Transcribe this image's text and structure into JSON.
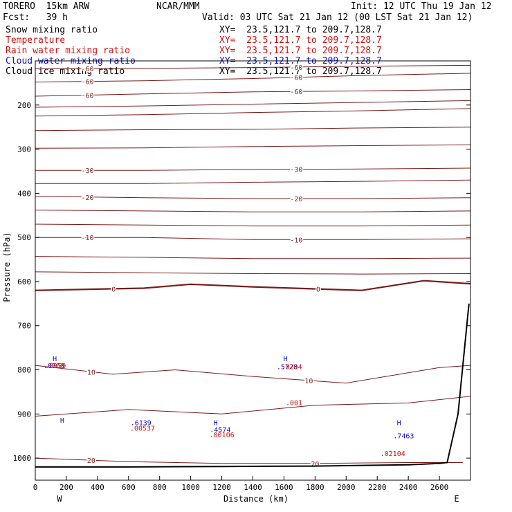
{
  "header": {
    "model": "TORERO  15km ARW",
    "center": "NCAR/MMM",
    "init": "Init: 12 UTC Thu 19 Jan 12",
    "fcst": "Fcst:   39 h",
    "valid": "Valid: 03 UTC Sat 21 Jan 12 (00 LST Sat 21 Jan 12)"
  },
  "fields": [
    {
      "name": "Snow mixing ratio",
      "xy": "XY=  23.5,121.7 to 209.7,128.7",
      "color": "#000000"
    },
    {
      "name": "Temperature",
      "xy": "XY=  23.5,121.7 to 209.7,128.7",
      "color": "#cc1111"
    },
    {
      "name": "Rain water mixing ratio",
      "xy": "XY=  23.5,121.7 to 209.7,128.7",
      "color": "#cc1111"
    },
    {
      "name": "Cloud water mixing ratio",
      "xy": "XY=  23.5,121.7 to 209.7,128.7",
      "color": "#1111cc"
    },
    {
      "name": "Cloud ice mixing ratio",
      "xy": "XY=  23.5,121.7 to 209.7,128.7",
      "color": "#000000"
    }
  ],
  "chart_data": {
    "type": "line",
    "xlabel": "Distance (km)",
    "ylabel": "Pressure (hPa)",
    "xlim": [
      0,
      2800
    ],
    "ylim": [
      1050,
      100
    ],
    "x_ticks": [
      0,
      200,
      400,
      600,
      800,
      1000,
      1200,
      1400,
      1600,
      1800,
      2000,
      2200,
      2400,
      2600
    ],
    "y_ticks": [
      200,
      300,
      400,
      500,
      600,
      700,
      800,
      900,
      1000
    ],
    "left_label": "W",
    "right_label": "E",
    "colors": {
      "temperature": "#7a1a1a",
      "rain": "#cc1111",
      "cloud_water": "#1111cc",
      "terrain": "#000000"
    },
    "temperature_contours": [
      {
        "label": "-60",
        "x": [
          0,
          700,
          1400,
          2100,
          2800
        ],
        "p": [
          118,
          117,
          115,
          112,
          110
        ]
      },
      {
        "label": "-60",
        "x": [
          0,
          700,
          1400,
          2100,
          2800
        ],
        "p": [
          148,
          145,
          140,
          133,
          128
        ]
      },
      {
        "label": "-60",
        "x": [
          0,
          700,
          1400,
          2100,
          2800
        ],
        "p": [
          180,
          175,
          170,
          168,
          165
        ]
      },
      {
        "label": "",
        "x": [
          0,
          700,
          1400,
          2100,
          2800
        ],
        "p": [
          205,
          202,
          198,
          194,
          190
        ]
      },
      {
        "label": "",
        "x": [
          0,
          700,
          1400,
          2100,
          2800
        ],
        "p": [
          225,
          222,
          217,
          213,
          208
        ]
      },
      {
        "label": "",
        "x": [
          0,
          700,
          1400,
          2100,
          2800
        ],
        "p": [
          258,
          256,
          255,
          252,
          250
        ]
      },
      {
        "label": "",
        "x": [
          0,
          700,
          1400,
          2100,
          2800
        ],
        "p": [
          298,
          297,
          294,
          292,
          290
        ]
      },
      {
        "label": "-30",
        "x": [
          0,
          700,
          1400,
          2100,
          2800
        ],
        "p": [
          348,
          348,
          346,
          345,
          343
        ]
      },
      {
        "label": "",
        "x": [
          0,
          700,
          1400,
          2100,
          2800
        ],
        "p": [
          378,
          378,
          375,
          373,
          370
        ]
      },
      {
        "label": "-20",
        "x": [
          0,
          700,
          1400,
          2100,
          2800
        ],
        "p": [
          407,
          410,
          412,
          412,
          410
        ]
      },
      {
        "label": "",
        "x": [
          0,
          700,
          1400,
          2100,
          2800
        ],
        "p": [
          438,
          440,
          442,
          442,
          440
        ]
      },
      {
        "label": "",
        "x": [
          0,
          700,
          1400,
          2100,
          2800
        ],
        "p": [
          470,
          472,
          474,
          474,
          472
        ]
      },
      {
        "label": "-10",
        "x": [
          0,
          700,
          1400,
          2100,
          2800
        ],
        "p": [
          500,
          500,
          505,
          505,
          503
        ]
      },
      {
        "label": "",
        "x": [
          0,
          700,
          1400,
          2100,
          2800
        ],
        "p": [
          543,
          545,
          548,
          548,
          547
        ]
      },
      {
        "label": "",
        "x": [
          0,
          700,
          1400,
          2100,
          2800
        ],
        "p": [
          578,
          580,
          582,
          583,
          582
        ]
      },
      {
        "label": "0",
        "x": [
          0,
          700,
          1000,
          1400,
          2100,
          2500,
          2800
        ],
        "p": [
          620,
          615,
          606,
          612,
          620,
          598,
          605
        ]
      },
      {
        "label": "10",
        "x": [
          0,
          500,
          900,
          1400,
          2000,
          2600,
          2800
        ],
        "p": [
          790,
          810,
          800,
          815,
          830,
          795,
          790
        ]
      },
      {
        "label": "",
        "x": [
          0,
          600,
          1200,
          1800,
          2400,
          2800
        ],
        "p": [
          905,
          890,
          900,
          880,
          875,
          860
        ]
      },
      {
        "label": "20",
        "x": [
          0,
          600,
          1200,
          1800,
          2400,
          2750
        ],
        "p": [
          1000,
          1008,
          1012,
          1012,
          1010,
          1010
        ]
      }
    ],
    "terrain": {
      "x": [
        0,
        600,
        1200,
        1800,
        2400,
        2600,
        2650,
        2720,
        2790
      ],
      "p": [
        1020,
        1020,
        1019,
        1018,
        1015,
        1012,
        1010,
        900,
        650
      ]
    },
    "annotations": [
      {
        "x": 125,
        "p": 780,
        "text": "H",
        "color": "#1111cc"
      },
      {
        "x": 120,
        "p": 796,
        "text": ".0960",
        "color": "#1111cc"
      },
      {
        "x": 130,
        "p": 796,
        "text": ".0959",
        "color": "#cc1111"
      },
      {
        "x": 173,
        "p": 920,
        "text": "H",
        "color": "#1111cc"
      },
      {
        "x": 680,
        "p": 925,
        "text": ".6139",
        "color": "#1111cc"
      },
      {
        "x": 690,
        "p": 938,
        "text": ".00537",
        "color": "#cc1111"
      },
      {
        "x": 1160,
        "p": 925,
        "text": "H",
        "color": "#1111cc"
      },
      {
        "x": 1190,
        "p": 941,
        "text": ".4574",
        "color": "#1111cc"
      },
      {
        "x": 1200,
        "p": 953,
        "text": ".00106",
        "color": "#cc1111"
      },
      {
        "x": 1610,
        "p": 780,
        "text": "H",
        "color": "#1111cc"
      },
      {
        "x": 1620,
        "p": 798,
        "text": ".5728",
        "color": "#1111cc"
      },
      {
        "x": 1650,
        "p": 798,
        "text": ".9294",
        "color": "#cc1111"
      },
      {
        "x": 1665,
        "p": 880,
        "text": ".001",
        "color": "#cc1111"
      },
      {
        "x": 2340,
        "p": 925,
        "text": "H",
        "color": "#1111cc"
      },
      {
        "x": 2370,
        "p": 955,
        "text": ".7463",
        "color": "#1111cc"
      },
      {
        "x": 2300,
        "p": 995,
        "text": ".02104",
        "color": "#cc1111"
      }
    ]
  }
}
